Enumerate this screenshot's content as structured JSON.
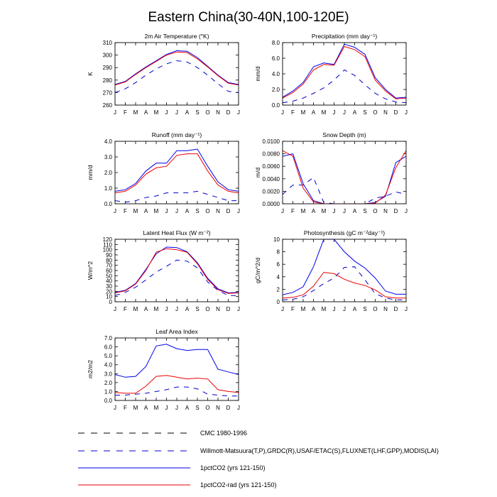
{
  "figure": {
    "title": "Eastern China(30-40N,100-120E)"
  },
  "months": [
    "J",
    "F",
    "M",
    "A",
    "M",
    "J",
    "J",
    "A",
    "S",
    "O",
    "N",
    "D",
    "J"
  ],
  "styles": {
    "cmc": {
      "color": "#000000",
      "dash": "7,7"
    },
    "obs": {
      "color": "#0000cc",
      "dash": "7,7"
    },
    "co2": {
      "color": "#0000ee",
      "dash": ""
    },
    "rad": {
      "color": "#ee0000",
      "dash": ""
    }
  },
  "legend": [
    {
      "style": "cmc",
      "label": "CMC 1980-1996"
    },
    {
      "style": "obs",
      "label": "Willmott-Matsuura(T,P),GRDC(R),USAF/ETAC(S),FLUXNET(LHF,GPP),MODIS(LAI)"
    },
    {
      "style": "co2",
      "label": "1pctCO2 (yrs 121-150)"
    },
    {
      "style": "rad",
      "label": "1pctCO2-rad (yrs 121-150)"
    }
  ],
  "chart_data": [
    {
      "type": "line",
      "title": "2m Air Temperature (°K)",
      "ylabel": "K",
      "ylim": [
        260,
        310
      ],
      "yticks": [
        "260",
        "270",
        "280",
        "290",
        "300",
        "310"
      ],
      "series": [
        {
          "style": "obs",
          "values": [
            270,
            273,
            278,
            284,
            289,
            293,
            295.5,
            294.5,
            290,
            284,
            277,
            271,
            270
          ]
        },
        {
          "style": "co2",
          "values": [
            276.5,
            279,
            285,
            290.5,
            295.5,
            300.5,
            303.5,
            303,
            298,
            291,
            284,
            278,
            276.5
          ]
        },
        {
          "style": "rad",
          "values": [
            276,
            278.5,
            284.5,
            290,
            295,
            300,
            302.5,
            302,
            297,
            290.5,
            283.5,
            277.5,
            276
          ]
        }
      ]
    },
    {
      "type": "line",
      "title": "Precipitation (mm day⁻¹)",
      "ylabel": "mm/d",
      "ylim": [
        0,
        8
      ],
      "yticks": [
        "0.0",
        "2.0",
        "4.0",
        "6.0",
        "8.0"
      ],
      "series": [
        {
          "style": "obs",
          "values": [
            0.3,
            0.5,
            0.9,
            1.5,
            2.2,
            3.2,
            4.5,
            3.8,
            2.6,
            1.5,
            0.8,
            0.4,
            0.3
          ]
        },
        {
          "style": "co2",
          "values": [
            1.0,
            1.8,
            2.9,
            4.9,
            5.4,
            5.2,
            7.8,
            7.4,
            6.5,
            3.5,
            2.0,
            0.9,
            1.0
          ]
        },
        {
          "style": "rad",
          "values": [
            0.9,
            1.6,
            2.7,
            4.5,
            5.2,
            5.1,
            7.5,
            7.1,
            6.2,
            3.2,
            1.8,
            0.8,
            0.9
          ]
        }
      ]
    },
    {
      "type": "line",
      "title": "Runoff (mm day⁻¹)",
      "ylabel": "mm/d",
      "ylim": [
        0,
        4
      ],
      "yticks": [
        "0.0",
        "1.0",
        "2.0",
        "3.0",
        "4.0"
      ],
      "series": [
        {
          "style": "obs",
          "values": [
            0.2,
            0.1,
            0.2,
            0.4,
            0.5,
            0.7,
            0.7,
            0.7,
            0.8,
            0.6,
            0.4,
            0.2,
            0.2
          ]
        },
        {
          "style": "co2",
          "values": [
            0.8,
            0.9,
            1.3,
            2.1,
            2.6,
            2.6,
            3.4,
            3.4,
            3.5,
            2.4,
            1.4,
            0.9,
            0.8
          ]
        },
        {
          "style": "rad",
          "values": [
            0.7,
            0.8,
            1.2,
            1.9,
            2.3,
            2.4,
            3.1,
            3.2,
            3.2,
            2.1,
            1.2,
            0.8,
            0.7
          ]
        }
      ]
    },
    {
      "type": "line",
      "title": "Snow Depth (m)",
      "ylabel": "m/d",
      "ylim": [
        0,
        0.01
      ],
      "yticks": [
        "0.0000",
        "0.0020",
        "0.0040",
        "0.0060",
        "0.0080",
        "0.0100"
      ],
      "series": [
        {
          "style": "obs",
          "values": [
            0.0015,
            0.003,
            0.003,
            0.0042,
            0.0002,
            0,
            0,
            0,
            0,
            0.0009,
            0.0012,
            0.0019,
            0.0015
          ]
        },
        {
          "style": "co2",
          "values": [
            0.0076,
            0.008,
            0.0032,
            0.0005,
            0,
            0,
            0,
            0,
            0,
            0.0002,
            0.0012,
            0.0066,
            0.0076
          ]
        },
        {
          "style": "rad",
          "values": [
            0.0085,
            0.0076,
            0.0025,
            0.0003,
            0,
            0,
            0,
            0,
            0,
            0.0001,
            0.0014,
            0.0058,
            0.0085
          ]
        }
      ]
    },
    {
      "type": "line",
      "title": "Latent Heat Flux (W m⁻²)",
      "ylabel": "W/m^2",
      "ylim": [
        0,
        120
      ],
      "yticks": [
        "0",
        "10",
        "20",
        "30",
        "40",
        "50",
        "60",
        "70",
        "80",
        "90",
        "100",
        "110",
        "120"
      ],
      "series": [
        {
          "style": "obs",
          "values": [
            12,
            18,
            28,
            42,
            57,
            68,
            80,
            78,
            65,
            38,
            22,
            12,
            12
          ]
        },
        {
          "style": "co2",
          "values": [
            18,
            22,
            35,
            62,
            92,
            105,
            104,
            96,
            75,
            45,
            25,
            17,
            18
          ]
        },
        {
          "style": "rad",
          "values": [
            17,
            21,
            34,
            60,
            95,
            102,
            100,
            95,
            73,
            43,
            23,
            16,
            17
          ]
        }
      ]
    },
    {
      "type": "line",
      "title": "Photosynthesis (gC m⁻²day⁻¹)",
      "ylabel": "gC/m^2/d",
      "ylim": [
        0,
        10
      ],
      "yticks": [
        "0",
        "2",
        "4",
        "6",
        "8",
        "10"
      ],
      "series": [
        {
          "style": "obs",
          "values": [
            0.3,
            0.4,
            0.8,
            1.8,
            2.9,
            3.8,
            5.5,
            5.6,
            3.5,
            1.3,
            0.6,
            0.3,
            0.3
          ]
        },
        {
          "style": "co2",
          "values": [
            1.1,
            1.5,
            2.4,
            5.6,
            10,
            10,
            8.0,
            6.5,
            5.4,
            3.8,
            1.7,
            1.2,
            1.2
          ]
        },
        {
          "style": "rad",
          "values": [
            0.6,
            0.7,
            1.1,
            2.5,
            4.7,
            4.5,
            3.6,
            3.0,
            2.6,
            1.9,
            0.8,
            0.6,
            0.6
          ]
        }
      ]
    },
    {
      "type": "line",
      "title": "Leaf Area Index",
      "ylabel": "m2/m2",
      "ylim": [
        0,
        7
      ],
      "yticks": [
        "0.0",
        "1.0",
        "2.0",
        "3.0",
        "4.0",
        "5.0",
        "6.0",
        "7.0"
      ],
      "series": [
        {
          "style": "obs",
          "values": [
            0.6,
            0.6,
            0.7,
            0.8,
            1.0,
            1.2,
            1.5,
            1.5,
            1.3,
            0.7,
            0.6,
            0.5,
            0.5
          ]
        },
        {
          "style": "co2",
          "values": [
            2.9,
            2.6,
            2.7,
            3.8,
            6.1,
            6.3,
            5.8,
            5.6,
            5.7,
            5.7,
            3.5,
            3.2,
            2.9
          ]
        },
        {
          "style": "rad",
          "values": [
            0.9,
            0.8,
            0.8,
            1.6,
            2.7,
            2.8,
            2.6,
            2.4,
            2.5,
            2.4,
            1.2,
            1.0,
            0.9
          ]
        }
      ]
    }
  ]
}
